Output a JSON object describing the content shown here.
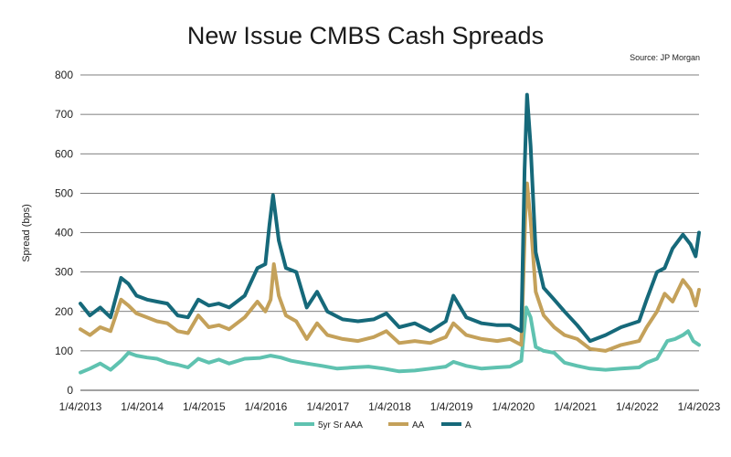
{
  "chart_data": {
    "type": "line",
    "title": "New Issue CMBS Cash Spreads",
    "source": "Source: JP Morgan",
    "ylabel": "Spread (bps)",
    "xlabel": "",
    "ylim": [
      0,
      800
    ],
    "yticks": [
      0,
      100,
      200,
      300,
      400,
      500,
      600,
      700,
      800
    ],
    "xlim": [
      "2013-01-04",
      "2023-01-04"
    ],
    "xticks": [
      "1/4/2013",
      "1/4/2014",
      "1/4/2015",
      "1/4/2016",
      "1/4/2017",
      "1/4/2018",
      "1/4/2019",
      "1/4/2020",
      "1/4/2021",
      "1/4/2022",
      "1/4/2023"
    ],
    "grid": "horizontal",
    "legend": "bottom-center",
    "series": [
      {
        "name": "5yr Sr AAA",
        "color": "#5fc2b0",
        "points": [
          [
            "2013-01-04",
            45
          ],
          [
            "2013-03-01",
            55
          ],
          [
            "2013-05-01",
            68
          ],
          [
            "2013-07-01",
            52
          ],
          [
            "2013-09-01",
            75
          ],
          [
            "2013-10-15",
            95
          ],
          [
            "2013-12-01",
            88
          ],
          [
            "2014-02-01",
            83
          ],
          [
            "2014-04-01",
            80
          ],
          [
            "2014-06-01",
            70
          ],
          [
            "2014-08-01",
            65
          ],
          [
            "2014-10-01",
            58
          ],
          [
            "2014-12-01",
            80
          ],
          [
            "2015-02-01",
            70
          ],
          [
            "2015-04-01",
            78
          ],
          [
            "2015-06-01",
            68
          ],
          [
            "2015-09-01",
            80
          ],
          [
            "2015-12-01",
            82
          ],
          [
            "2016-02-01",
            88
          ],
          [
            "2016-04-01",
            83
          ],
          [
            "2016-06-01",
            75
          ],
          [
            "2016-09-01",
            68
          ],
          [
            "2016-12-01",
            62
          ],
          [
            "2017-03-01",
            55
          ],
          [
            "2017-06-01",
            58
          ],
          [
            "2017-09-01",
            60
          ],
          [
            "2017-12-01",
            55
          ],
          [
            "2018-03-01",
            48
          ],
          [
            "2018-06-01",
            50
          ],
          [
            "2018-09-01",
            55
          ],
          [
            "2018-12-01",
            60
          ],
          [
            "2019-01-15",
            72
          ],
          [
            "2019-04-01",
            62
          ],
          [
            "2019-07-01",
            55
          ],
          [
            "2019-10-01",
            58
          ],
          [
            "2019-12-15",
            60
          ],
          [
            "2020-02-20",
            75
          ],
          [
            "2020-03-20",
            210
          ],
          [
            "2020-04-15",
            185
          ],
          [
            "2020-05-15",
            110
          ],
          [
            "2020-07-01",
            100
          ],
          [
            "2020-09-01",
            95
          ],
          [
            "2020-11-01",
            70
          ],
          [
            "2021-01-15",
            62
          ],
          [
            "2021-04-01",
            55
          ],
          [
            "2021-07-01",
            52
          ],
          [
            "2021-10-01",
            55
          ],
          [
            "2022-01-15",
            58
          ],
          [
            "2022-03-01",
            70
          ],
          [
            "2022-05-01",
            80
          ],
          [
            "2022-07-01",
            125
          ],
          [
            "2022-08-15",
            130
          ],
          [
            "2022-10-01",
            140
          ],
          [
            "2022-11-01",
            150
          ],
          [
            "2022-12-01",
            125
          ],
          [
            "2023-01-04",
            115
          ]
        ]
      },
      {
        "name": "AA",
        "color": "#c4a15a",
        "points": [
          [
            "2013-01-04",
            155
          ],
          [
            "2013-03-01",
            140
          ],
          [
            "2013-05-01",
            160
          ],
          [
            "2013-07-01",
            150
          ],
          [
            "2013-09-01",
            230
          ],
          [
            "2013-10-15",
            215
          ],
          [
            "2013-12-01",
            195
          ],
          [
            "2014-02-01",
            185
          ],
          [
            "2014-04-01",
            175
          ],
          [
            "2014-06-01",
            170
          ],
          [
            "2014-08-01",
            150
          ],
          [
            "2014-10-01",
            145
          ],
          [
            "2014-12-01",
            190
          ],
          [
            "2015-02-01",
            160
          ],
          [
            "2015-04-01",
            165
          ],
          [
            "2015-06-01",
            155
          ],
          [
            "2015-09-01",
            185
          ],
          [
            "2015-11-15",
            225
          ],
          [
            "2016-01-01",
            200
          ],
          [
            "2016-02-01",
            230
          ],
          [
            "2016-02-20",
            320
          ],
          [
            "2016-03-20",
            240
          ],
          [
            "2016-05-01",
            190
          ],
          [
            "2016-07-01",
            175
          ],
          [
            "2016-09-01",
            130
          ],
          [
            "2016-11-01",
            170
          ],
          [
            "2017-01-01",
            140
          ],
          [
            "2017-04-01",
            130
          ],
          [
            "2017-07-01",
            125
          ],
          [
            "2017-10-01",
            135
          ],
          [
            "2017-12-15",
            150
          ],
          [
            "2018-03-01",
            120
          ],
          [
            "2018-06-01",
            125
          ],
          [
            "2018-09-01",
            120
          ],
          [
            "2018-12-01",
            135
          ],
          [
            "2019-01-15",
            170
          ],
          [
            "2019-04-01",
            140
          ],
          [
            "2019-07-01",
            130
          ],
          [
            "2019-10-01",
            125
          ],
          [
            "2019-12-15",
            130
          ],
          [
            "2020-02-20",
            115
          ],
          [
            "2020-03-15",
            450
          ],
          [
            "2020-03-25",
            525
          ],
          [
            "2020-04-15",
            430
          ],
          [
            "2020-05-15",
            250
          ],
          [
            "2020-07-01",
            190
          ],
          [
            "2020-09-01",
            160
          ],
          [
            "2020-11-01",
            140
          ],
          [
            "2021-01-15",
            130
          ],
          [
            "2021-04-01",
            105
          ],
          [
            "2021-07-01",
            100
          ],
          [
            "2021-10-01",
            115
          ],
          [
            "2022-01-15",
            125
          ],
          [
            "2022-03-01",
            160
          ],
          [
            "2022-05-01",
            200
          ],
          [
            "2022-06-15",
            245
          ],
          [
            "2022-08-01",
            225
          ],
          [
            "2022-10-01",
            280
          ],
          [
            "2022-11-15",
            255
          ],
          [
            "2022-12-15",
            215
          ],
          [
            "2023-01-04",
            255
          ]
        ]
      },
      {
        "name": "A",
        "color": "#16697a",
        "points": [
          [
            "2013-01-04",
            220
          ],
          [
            "2013-03-01",
            190
          ],
          [
            "2013-05-01",
            210
          ],
          [
            "2013-07-01",
            185
          ],
          [
            "2013-09-01",
            285
          ],
          [
            "2013-10-15",
            270
          ],
          [
            "2013-12-01",
            240
          ],
          [
            "2014-02-01",
            230
          ],
          [
            "2014-04-01",
            225
          ],
          [
            "2014-06-01",
            220
          ],
          [
            "2014-08-01",
            190
          ],
          [
            "2014-10-01",
            185
          ],
          [
            "2014-12-01",
            230
          ],
          [
            "2015-02-01",
            215
          ],
          [
            "2015-04-01",
            220
          ],
          [
            "2015-06-01",
            210
          ],
          [
            "2015-09-01",
            240
          ],
          [
            "2015-11-15",
            310
          ],
          [
            "2016-01-01",
            320
          ],
          [
            "2016-01-25",
            420
          ],
          [
            "2016-02-15",
            495
          ],
          [
            "2016-03-20",
            380
          ],
          [
            "2016-05-01",
            310
          ],
          [
            "2016-07-01",
            300
          ],
          [
            "2016-09-01",
            210
          ],
          [
            "2016-11-01",
            250
          ],
          [
            "2017-01-01",
            200
          ],
          [
            "2017-04-01",
            180
          ],
          [
            "2017-07-01",
            175
          ],
          [
            "2017-10-01",
            180
          ],
          [
            "2017-12-15",
            195
          ],
          [
            "2018-03-01",
            160
          ],
          [
            "2018-06-01",
            170
          ],
          [
            "2018-09-01",
            150
          ],
          [
            "2018-12-01",
            175
          ],
          [
            "2019-01-15",
            240
          ],
          [
            "2019-04-01",
            185
          ],
          [
            "2019-07-01",
            170
          ],
          [
            "2019-10-01",
            165
          ],
          [
            "2019-12-15",
            165
          ],
          [
            "2020-02-20",
            150
          ],
          [
            "2020-03-10",
            560
          ],
          [
            "2020-03-25",
            750
          ],
          [
            "2020-04-15",
            620
          ],
          [
            "2020-05-15",
            350
          ],
          [
            "2020-07-01",
            260
          ],
          [
            "2020-09-01",
            230
          ],
          [
            "2020-11-01",
            200
          ],
          [
            "2021-01-15",
            165
          ],
          [
            "2021-04-01",
            125
          ],
          [
            "2021-07-01",
            140
          ],
          [
            "2021-10-01",
            160
          ],
          [
            "2022-01-15",
            175
          ],
          [
            "2022-03-01",
            230
          ],
          [
            "2022-05-01",
            300
          ],
          [
            "2022-06-15",
            310
          ],
          [
            "2022-08-01",
            360
          ],
          [
            "2022-10-01",
            395
          ],
          [
            "2022-11-15",
            370
          ],
          [
            "2022-12-15",
            340
          ],
          [
            "2023-01-04",
            400
          ]
        ]
      }
    ]
  }
}
